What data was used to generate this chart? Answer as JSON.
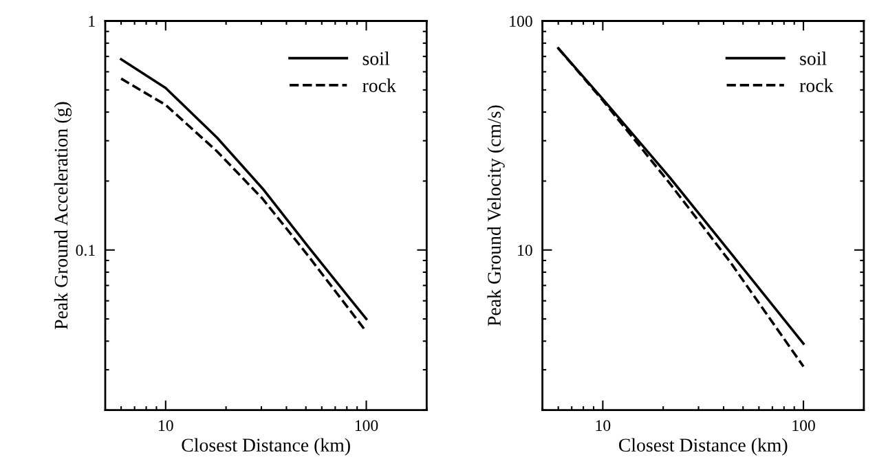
{
  "chart_data": [
    {
      "type": "line",
      "xlabel": "Closest Distance (km)",
      "ylabel": "Peak Ground Acceleration (g)",
      "log": "xy",
      "xlim": [
        5,
        200
      ],
      "ylim": [
        0.02,
        1
      ],
      "xticks": [
        10,
        100
      ],
      "yticks": [
        0.1,
        1
      ],
      "legend": "top right",
      "grid": false,
      "series": [
        {
          "name": "soil",
          "color": "#000000",
          "line_style": "solid",
          "x": [
            6,
            10,
            18,
            30.5,
            51.5,
            100
          ],
          "values": [
            0.68,
            0.51,
            0.31,
            0.185,
            0.103,
            0.05
          ]
        },
        {
          "name": "rock",
          "color": "#000000",
          "line_style": "dashed",
          "x": [
            6,
            10,
            18,
            30.5,
            51.5,
            100
          ],
          "values": [
            0.56,
            0.43,
            0.27,
            0.167,
            0.094,
            0.044
          ]
        }
      ]
    },
    {
      "type": "line",
      "xlabel": "Closest Distance (km)",
      "ylabel": "Peak Ground Velocity (cm/s)",
      "log": "xy",
      "xlim": [
        5,
        200
      ],
      "ylim": [
        2,
        100
      ],
      "xticks": [
        10,
        100
      ],
      "yticks": [
        10,
        100
      ],
      "legend": "top right",
      "grid": false,
      "series": [
        {
          "name": "soil",
          "color": "#000000",
          "line_style": "solid",
          "x": [
            6,
            10,
            21.5,
            43,
            100
          ],
          "values": [
            76,
            45.6,
            20.8,
            9.8,
            3.9
          ]
        },
        {
          "name": "rock",
          "color": "#000000",
          "line_style": "dashed",
          "x": [
            6,
            10,
            21.5,
            43,
            100
          ],
          "values": [
            76,
            45,
            19.6,
            8.9,
            3.1
          ]
        }
      ]
    }
  ]
}
